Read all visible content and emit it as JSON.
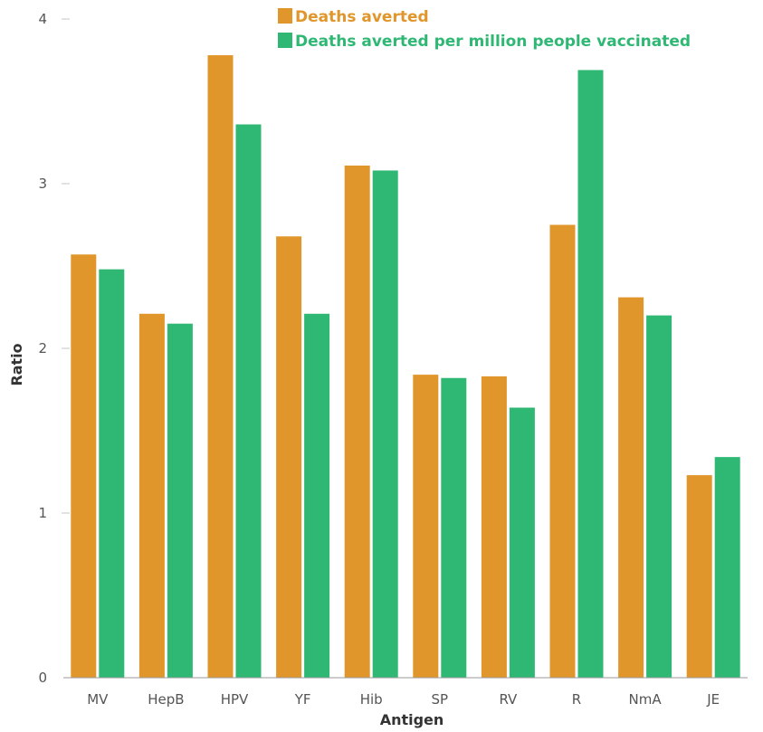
{
  "chart_data": {
    "type": "bar",
    "categories": [
      "MV",
      "HepB",
      "HPV",
      "YF",
      "Hib",
      "SP",
      "RV",
      "R",
      "NmA",
      "JE"
    ],
    "series": [
      {
        "name": "Deaths averted",
        "color": "#e0962b",
        "values": [
          2.57,
          2.21,
          3.78,
          2.68,
          3.11,
          1.84,
          1.83,
          2.75,
          2.31,
          1.23
        ]
      },
      {
        "name": "Deaths averted per million people vaccinated",
        "color": "#2fb874",
        "values": [
          2.48,
          2.15,
          3.36,
          2.21,
          3.08,
          1.82,
          1.64,
          3.69,
          2.2,
          1.34
        ]
      }
    ],
    "xlabel": "Antigen",
    "ylabel": "Ratio",
    "ylim": [
      0,
      4
    ],
    "yticks": [
      "0",
      "1",
      "2",
      "3",
      "4"
    ],
    "legend_position": "top-center",
    "grid": false
  }
}
